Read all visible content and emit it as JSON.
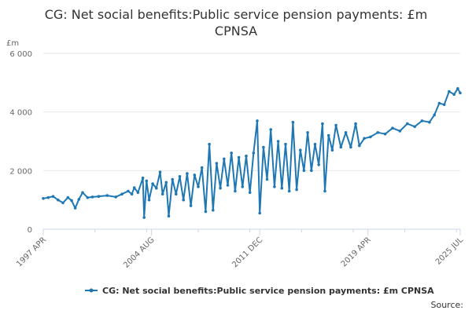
{
  "chart_data": {
    "type": "line",
    "title": "CG: Net social benefits:Public service pension payments: £m CPNSA",
    "ylabel": "£m",
    "xlabel": "",
    "ylim": [
      0,
      6000
    ],
    "yticks": [
      0,
      2000,
      4000,
      6000
    ],
    "ytick_labels": [
      "0",
      "2 000",
      "4 000",
      "6 000"
    ],
    "xlim": [
      "1997-04",
      "2025-07"
    ],
    "xticks": [
      "1997-04",
      "2004-08",
      "2011-12",
      "2019-04",
      "2025-07"
    ],
    "xtick_labels": [
      "1997 APR",
      "2004 AUG",
      "2011 DEC",
      "2019 APR",
      "2025 JUL"
    ],
    "grid": true,
    "legend_position": "bottom",
    "color": "#1f78b4",
    "series": [
      {
        "name": "CG: Net social benefits:Public service pension payments: £m CPNSA",
        "points": [
          [
            "1997-04",
            1050
          ],
          [
            "1997-08",
            1080
          ],
          [
            "1997-12",
            1120
          ],
          [
            "1998-04",
            1000
          ],
          [
            "1998-08",
            900
          ],
          [
            "1998-12",
            1080
          ],
          [
            "1999-03",
            980
          ],
          [
            "1999-06",
            720
          ],
          [
            "1999-09",
            1020
          ],
          [
            "1999-12",
            1250
          ],
          [
            "2000-04",
            1080
          ],
          [
            "2000-08",
            1100
          ],
          [
            "2001-01",
            1120
          ],
          [
            "2001-08",
            1150
          ],
          [
            "2002-03",
            1100
          ],
          [
            "2002-08",
            1200
          ],
          [
            "2003-01",
            1300
          ],
          [
            "2003-04",
            1200
          ],
          [
            "2003-06",
            1420
          ],
          [
            "2003-09",
            1250
          ],
          [
            "2004-01",
            1750
          ],
          [
            "2004-02",
            400
          ],
          [
            "2004-04",
            1650
          ],
          [
            "2004-06",
            1000
          ],
          [
            "2004-09",
            1550
          ],
          [
            "2004-12",
            1400
          ],
          [
            "2005-03",
            1950
          ],
          [
            "2005-05",
            1200
          ],
          [
            "2005-08",
            1600
          ],
          [
            "2005-10",
            450
          ],
          [
            "2006-01",
            1700
          ],
          [
            "2006-04",
            1200
          ],
          [
            "2006-07",
            1800
          ],
          [
            "2006-10",
            1000
          ],
          [
            "2007-01",
            1900
          ],
          [
            "2007-04",
            800
          ],
          [
            "2007-07",
            1850
          ],
          [
            "2007-10",
            1450
          ],
          [
            "2008-01",
            2100
          ],
          [
            "2008-04",
            600
          ],
          [
            "2008-07",
            2900
          ],
          [
            "2008-10",
            650
          ],
          [
            "2009-01",
            2250
          ],
          [
            "2009-04",
            1400
          ],
          [
            "2009-07",
            2400
          ],
          [
            "2009-10",
            1500
          ],
          [
            "2010-01",
            2600
          ],
          [
            "2010-04",
            1300
          ],
          [
            "2010-07",
            2450
          ],
          [
            "2010-10",
            1450
          ],
          [
            "2011-01",
            2500
          ],
          [
            "2011-04",
            1250
          ],
          [
            "2011-07",
            2600
          ],
          [
            "2011-10",
            3700
          ],
          [
            "2011-12",
            550
          ],
          [
            "2012-03",
            2800
          ],
          [
            "2012-06",
            1700
          ],
          [
            "2012-09",
            3400
          ],
          [
            "2012-12",
            1450
          ],
          [
            "2013-03",
            3000
          ],
          [
            "2013-06",
            1400
          ],
          [
            "2013-09",
            2900
          ],
          [
            "2013-12",
            1300
          ],
          [
            "2014-03",
            3650
          ],
          [
            "2014-06",
            1350
          ],
          [
            "2014-09",
            2700
          ],
          [
            "2014-12",
            2000
          ],
          [
            "2015-03",
            3300
          ],
          [
            "2015-06",
            2000
          ],
          [
            "2015-09",
            2900
          ],
          [
            "2015-12",
            2200
          ],
          [
            "2016-03",
            3600
          ],
          [
            "2016-05",
            1300
          ],
          [
            "2016-08",
            3200
          ],
          [
            "2016-11",
            2700
          ],
          [
            "2017-02",
            3550
          ],
          [
            "2017-06",
            2800
          ],
          [
            "2017-10",
            3300
          ],
          [
            "2018-02",
            2800
          ],
          [
            "2018-06",
            3600
          ],
          [
            "2018-09",
            2850
          ],
          [
            "2019-01",
            3100
          ],
          [
            "2019-06",
            3150
          ],
          [
            "2019-12",
            3300
          ],
          [
            "2020-06",
            3250
          ],
          [
            "2020-12",
            3450
          ],
          [
            "2021-06",
            3350
          ],
          [
            "2021-12",
            3600
          ],
          [
            "2022-06",
            3500
          ],
          [
            "2022-12",
            3700
          ],
          [
            "2023-06",
            3650
          ],
          [
            "2023-10",
            3900
          ],
          [
            "2024-02",
            4300
          ],
          [
            "2024-06",
            4250
          ],
          [
            "2024-10",
            4700
          ],
          [
            "2025-02",
            4600
          ],
          [
            "2025-05",
            4800
          ],
          [
            "2025-07",
            4650
          ]
        ]
      }
    ],
    "legend_label": "CG: Net social benefits:Public service pension payments: £m CPNSA",
    "credit": "Source:"
  }
}
